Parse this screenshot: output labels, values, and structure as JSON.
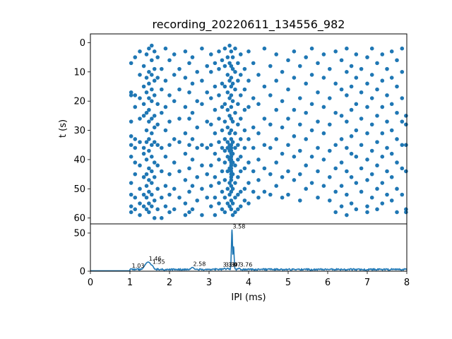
{
  "chart_data": [
    {
      "type": "scatter",
      "title": "recording_20220611_134556_982",
      "xlabel": "",
      "ylabel": "t (s)",
      "xlim": [
        0,
        8
      ],
      "ylim": [
        62,
        -3
      ],
      "y_inverted": true,
      "yticks": [
        0,
        10,
        20,
        30,
        40,
        50,
        60
      ],
      "color": "#1f77b4",
      "columns": [
        {
          "x": 1.03,
          "t": [
            7,
            17,
            18,
            27,
            32,
            35,
            39,
            48,
            52,
            56,
            58
          ]
        },
        {
          "x": 1.13,
          "t": [
            5,
            18,
            22,
            33,
            36,
            41,
            45,
            53,
            57
          ]
        },
        {
          "x": 1.25,
          "t": [
            3,
            11,
            19,
            26,
            34,
            42,
            50,
            55,
            59
          ]
        },
        {
          "x": 1.35,
          "t": [
            8,
            15,
            21,
            25,
            36,
            38,
            46,
            52,
            56
          ]
        },
        {
          "x": 1.42,
          "t": [
            4,
            12,
            17,
            24,
            30,
            34,
            40,
            45,
            49,
            53,
            57
          ]
        },
        {
          "x": 1.48,
          "t": [
            2,
            10,
            14,
            19,
            23,
            27,
            33,
            37,
            43,
            47,
            51,
            55,
            58
          ]
        },
        {
          "x": 1.55,
          "t": [
            1,
            6,
            11,
            16,
            20,
            26,
            31,
            35,
            39,
            44,
            48,
            52,
            56
          ]
        },
        {
          "x": 1.62,
          "t": [
            3,
            9,
            13,
            18,
            25,
            29,
            34,
            41,
            46,
            54,
            60
          ]
        },
        {
          "x": 1.7,
          "t": [
            5,
            12,
            21,
            28,
            35,
            42,
            50,
            57
          ]
        },
        {
          "x": 1.8,
          "t": [
            9,
            16,
            24,
            36,
            44,
            53,
            60
          ]
        },
        {
          "x": 1.9,
          "t": [
            2,
            13,
            22,
            30,
            39,
            49,
            56
          ]
        },
        {
          "x": 2.0,
          "t": [
            6,
            18,
            27,
            35,
            45,
            52,
            58
          ]
        },
        {
          "x": 2.12,
          "t": [
            4,
            11,
            20,
            33,
            41,
            50,
            57
          ]
        },
        {
          "x": 2.25,
          "t": [
            9,
            16,
            26,
            34,
            44,
            53
          ]
        },
        {
          "x": 2.4,
          "t": [
            3,
            12,
            22,
            31,
            38,
            47,
            55,
            59
          ]
        },
        {
          "x": 2.5,
          "t": [
            7,
            17,
            26,
            35,
            43,
            51,
            58
          ]
        },
        {
          "x": 2.58,
          "t": [
            5,
            14,
            24,
            33,
            40,
            49,
            57
          ]
        },
        {
          "x": 2.7,
          "t": [
            10,
            20,
            29,
            36,
            46,
            54
          ]
        },
        {
          "x": 2.82,
          "t": [
            2,
            13,
            21,
            35,
            42,
            50,
            59
          ]
        },
        {
          "x": 2.95,
          "t": [
            8,
            17,
            27,
            36,
            45,
            53
          ]
        },
        {
          "x": 3.05,
          "t": [
            4,
            10,
            19,
            28,
            35,
            42,
            49,
            56
          ]
        },
        {
          "x": 3.15,
          "t": [
            7,
            15,
            23,
            31,
            38,
            46,
            53,
            59
          ]
        },
        {
          "x": 3.25,
          "t": [
            3,
            9,
            18,
            26,
            34,
            40,
            48,
            55
          ]
        },
        {
          "x": 3.33,
          "t": [
            6,
            14,
            22,
            30,
            36,
            44,
            51,
            57
          ]
        },
        {
          "x": 3.4,
          "t": [
            2,
            8,
            15,
            21,
            27,
            33,
            37,
            41,
            47,
            53,
            58
          ]
        },
        {
          "x": 3.47,
          "t": [
            5,
            11,
            17,
            23,
            29,
            34,
            36,
            39,
            44,
            50,
            55
          ]
        },
        {
          "x": 3.52,
          "t": [
            1,
            7,
            13,
            19,
            25,
            31,
            35,
            37,
            40,
            43,
            48,
            52,
            56
          ]
        },
        {
          "x": 3.56,
          "t": [
            3,
            8,
            12,
            15,
            18,
            22,
            26,
            30,
            33,
            35,
            36,
            37,
            38,
            39,
            40,
            41,
            42,
            43,
            44,
            45,
            46,
            47,
            49,
            51,
            54,
            57
          ]
        },
        {
          "x": 3.6,
          "t": [
            5,
            9,
            14,
            20,
            27,
            34,
            38,
            41,
            45,
            50,
            55,
            59
          ]
        },
        {
          "x": 3.66,
          "t": [
            2,
            10,
            16,
            24,
            31,
            36,
            42,
            48,
            53,
            58
          ]
        },
        {
          "x": 3.73,
          "t": [
            7,
            13,
            21,
            28,
            35,
            40,
            46,
            52,
            57
          ]
        },
        {
          "x": 3.8,
          "t": [
            4,
            11,
            18,
            26,
            33,
            39,
            44,
            51,
            56
          ]
        },
        {
          "x": 3.9,
          "t": [
            9,
            16,
            23,
            30,
            36,
            43,
            50,
            54
          ]
        },
        {
          "x": 4.0,
          "t": [
            3,
            13,
            22,
            33,
            41,
            48,
            55
          ]
        },
        {
          "x": 4.12,
          "t": [
            7,
            19,
            29,
            36,
            44,
            51
          ]
        },
        {
          "x": 4.25,
          "t": [
            11,
            21,
            31,
            40,
            47,
            53
          ]
        },
        {
          "x": 4.4,
          "t": [
            2,
            15,
            26,
            35,
            43,
            51
          ]
        },
        {
          "x": 4.55,
          "t": [
            8,
            18,
            28,
            36,
            45,
            52
          ]
        },
        {
          "x": 4.7,
          "t": [
            4,
            13,
            23,
            33,
            41,
            49
          ]
        },
        {
          "x": 4.85,
          "t": [
            10,
            20,
            29,
            38,
            46,
            53
          ]
        },
        {
          "x": 5.0,
          "t": [
            6,
            16,
            26,
            35,
            44,
            52
          ]
        },
        {
          "x": 5.15,
          "t": [
            3,
            12,
            23,
            32,
            39,
            47
          ]
        },
        {
          "x": 5.3,
          "t": [
            8,
            19,
            28,
            37,
            45,
            54
          ]
        },
        {
          "x": 5.45,
          "t": [
            5,
            14,
            24,
            33,
            42,
            50
          ]
        },
        {
          "x": 5.6,
          "t": [
            2,
            11,
            21,
            30,
            39,
            48
          ]
        },
        {
          "x": 5.75,
          "t": [
            7,
            17,
            27,
            36,
            44,
            53
          ]
        },
        {
          "x": 5.9,
          "t": [
            4,
            12,
            22,
            31,
            40,
            49
          ]
        },
        {
          "x": 6.05,
          "t": [
            9,
            19,
            28,
            37,
            46,
            54
          ]
        },
        {
          "x": 6.2,
          "t": [
            3,
            14,
            24,
            35,
            43,
            51,
            58
          ]
        },
        {
          "x": 6.35,
          "t": [
            6,
            16,
            25,
            33,
            41,
            49,
            56
          ]
        },
        {
          "x": 6.48,
          "t": [
            2,
            10,
            18,
            27,
            36,
            44,
            52,
            59
          ]
        },
        {
          "x": 6.6,
          "t": [
            8,
            15,
            23,
            32,
            38,
            46,
            55
          ]
        },
        {
          "x": 6.72,
          "t": [
            4,
            12,
            21,
            30,
            39,
            48,
            57
          ]
        },
        {
          "x": 6.85,
          "t": [
            9,
            17,
            26,
            35,
            43,
            51
          ]
        },
        {
          "x": 7.0,
          "t": [
            5,
            14,
            22,
            31,
            40,
            47,
            56,
            58
          ]
        },
        {
          "x": 7.12,
          "t": [
            2,
            11,
            19,
            28,
            37,
            45,
            53
          ]
        },
        {
          "x": 7.25,
          "t": [
            7,
            16,
            25,
            34,
            42,
            50,
            57
          ]
        },
        {
          "x": 7.38,
          "t": [
            4,
            13,
            22,
            31,
            39,
            48,
            55
          ]
        },
        {
          "x": 7.5,
          "t": [
            9,
            18,
            27,
            36,
            44,
            52
          ]
        },
        {
          "x": 7.62,
          "t": [
            3,
            12,
            21,
            30,
            38,
            46,
            54
          ]
        },
        {
          "x": 7.75,
          "t": [
            6,
            15,
            24,
            33,
            41,
            50,
            58
          ]
        },
        {
          "x": 7.88,
          "t": [
            2,
            10,
            19,
            27,
            35,
            43,
            52
          ]
        },
        {
          "x": 7.98,
          "t": [
            25,
            28,
            35,
            44,
            57,
            58
          ]
        }
      ]
    },
    {
      "type": "line",
      "xlabel": "IPI (ms)",
      "ylabel": "",
      "xlim": [
        0,
        8
      ],
      "ylim": [
        0,
        62
      ],
      "xticks": [
        0,
        1,
        2,
        3,
        4,
        5,
        6,
        7,
        8
      ],
      "yticks": [
        0,
        50
      ],
      "color": "#1f77b4",
      "baseline": {
        "x_start": 0,
        "x_end": 1.0,
        "y": 0.5
      },
      "noise": {
        "x_start": 1.0,
        "x_end": 8.0,
        "step": 0.025
      },
      "peaks": [
        {
          "x": 1.03,
          "y": 3,
          "w": 0.04
        },
        {
          "x": 1.46,
          "y": 12,
          "w": 0.09
        },
        {
          "x": 1.55,
          "y": 8,
          "w": 0.05
        },
        {
          "x": 2.58,
          "y": 5,
          "w": 0.05
        },
        {
          "x": 3.39,
          "y": 4,
          "w": 0.03
        },
        {
          "x": 3.47,
          "y": 4,
          "w": 0.03
        },
        {
          "x": 3.58,
          "y": 54,
          "w": 0.015
        },
        {
          "x": 3.62,
          "y": 32,
          "w": 0.015
        },
        {
          "x": 3.76,
          "y": 4,
          "w": 0.03
        }
      ],
      "annotations": [
        {
          "x": 1.03,
          "y": 3,
          "text": "1.03"
        },
        {
          "x": 1.46,
          "y": 12,
          "text": "1.46"
        },
        {
          "x": 1.55,
          "y": 8,
          "text": "1.55"
        },
        {
          "x": 2.58,
          "y": 5,
          "text": "2.58"
        },
        {
          "x": 3.33,
          "y": 4,
          "text": "3.33"
        },
        {
          "x": 3.39,
          "y": 4,
          "text": "3.39"
        },
        {
          "x": 3.47,
          "y": 4,
          "text": "3.47"
        },
        {
          "x": 3.58,
          "y": 54,
          "text": "3.58"
        },
        {
          "x": 3.76,
          "y": 4,
          "text": "3.76"
        }
      ]
    }
  ]
}
